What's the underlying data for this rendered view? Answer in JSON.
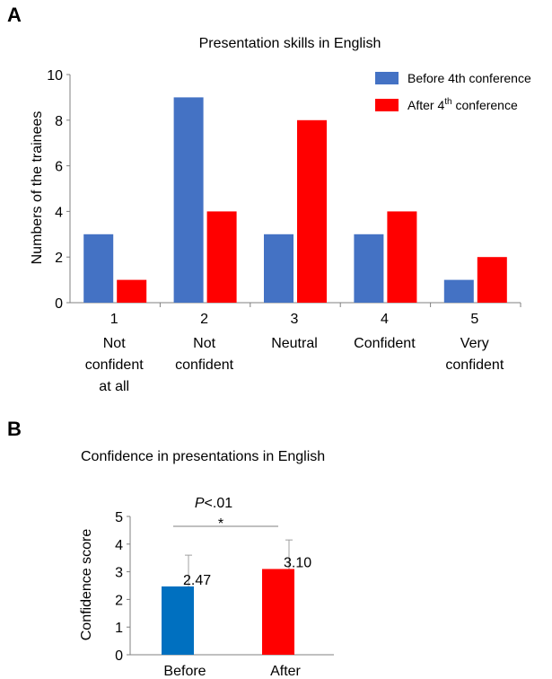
{
  "panels": {
    "a_letter": "A",
    "b_letter": "B"
  },
  "chart_data": [
    {
      "type": "bar",
      "title": "Presentation skills in English",
      "ylabel": "Numbers of the trainees",
      "xlabel": "",
      "ylim": [
        0,
        10
      ],
      "yticks": [
        0,
        2,
        4,
        6,
        8,
        10
      ],
      "categories": [
        "1",
        "2",
        "3",
        "4",
        "5"
      ],
      "category_descriptions": [
        [
          "Not",
          "confident",
          "at all"
        ],
        [
          "Not",
          "confident"
        ],
        [
          "Neutral"
        ],
        [
          "Confident"
        ],
        [
          "Very",
          "confident"
        ]
      ],
      "series": [
        {
          "name": "Before 4th conference",
          "values": [
            3,
            9,
            3,
            3,
            1
          ],
          "color": "#4472C4"
        },
        {
          "name": "After 4th conference",
          "values": [
            1,
            4,
            8,
            4,
            2
          ],
          "color": "#FF0000"
        }
      ],
      "legend_position": "top-right",
      "legend_labels": [
        {
          "text": "Before 4th conference"
        },
        {
          "base": "After 4",
          "sup": "th",
          "rest": " conference"
        }
      ]
    },
    {
      "type": "bar",
      "title": "Confidence in presentations in English",
      "ylabel": "Confidence score",
      "xlabel": "",
      "ylim": [
        0,
        5
      ],
      "yticks": [
        0,
        1,
        2,
        3,
        4,
        5
      ],
      "categories": [
        "Before",
        "After"
      ],
      "values": [
        2.47,
        3.1
      ],
      "value_labels": [
        "2.47",
        "3.10"
      ],
      "error_upper": [
        3.6,
        4.15
      ],
      "colors": [
        "#0070C0",
        "#FF0000"
      ],
      "significance": {
        "p_prefix": "P",
        "p_text": "<.01",
        "marker": "*"
      }
    }
  ]
}
